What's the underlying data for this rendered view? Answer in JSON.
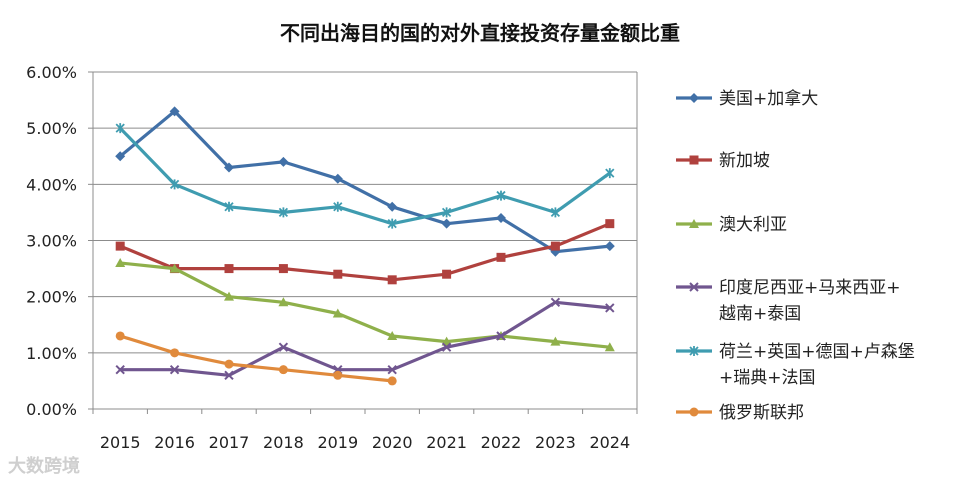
{
  "chart_data": {
    "type": "line",
    "title": "不同出海目的国的对外直接投资存量金额比重",
    "xlabel": "",
    "ylabel": "",
    "categories": [
      "2015",
      "2016",
      "2017",
      "2018",
      "2019",
      "2020",
      "2021",
      "2022",
      "2023",
      "2024"
    ],
    "yticks": [
      "0.00%",
      "1.00%",
      "2.00%",
      "3.00%",
      "4.00%",
      "5.00%",
      "6.00%"
    ],
    "ylim": [
      0,
      6
    ],
    "grid": true,
    "legend_position": "right",
    "series": [
      {
        "name": "美国+加拿大",
        "legend_lines": [
          "美国+加拿大"
        ],
        "color": "#4170a7",
        "marker": "diamond",
        "values": [
          4.5,
          5.3,
          4.3,
          4.4,
          4.1,
          3.6,
          3.3,
          3.4,
          2.8,
          2.9
        ]
      },
      {
        "name": "新加坡",
        "legend_lines": [
          "新加坡"
        ],
        "color": "#b0413e",
        "marker": "square",
        "values": [
          2.9,
          2.5,
          2.5,
          2.5,
          2.4,
          2.3,
          2.4,
          2.7,
          2.9,
          3.3
        ]
      },
      {
        "name": "澳大利亚",
        "legend_lines": [
          "澳大利亚"
        ],
        "color": "#8fb04b",
        "marker": "triangle",
        "values": [
          2.6,
          2.5,
          2.0,
          1.9,
          1.7,
          1.3,
          1.2,
          1.3,
          1.2,
          1.1
        ]
      },
      {
        "name": "印度尼西亚+马来西亚+越南+泰国",
        "legend_lines": [
          "印度尼西亚+马来西亚+",
          "越南+泰国"
        ],
        "color": "#70568f",
        "marker": "x",
        "values": [
          0.7,
          0.7,
          0.6,
          1.1,
          0.7,
          0.7,
          1.1,
          1.3,
          1.9,
          1.8
        ]
      },
      {
        "name": "荷兰+英国+德国+卢森堡+瑞典+法国",
        "legend_lines": [
          "荷兰+英国+德国+卢森堡",
          "+瑞典+法国"
        ],
        "color": "#3f9cb0",
        "marker": "star",
        "values": [
          5.0,
          4.0,
          3.6,
          3.5,
          3.6,
          3.3,
          3.5,
          3.8,
          3.5,
          4.2
        ]
      },
      {
        "name": "俄罗斯联邦",
        "legend_lines": [
          "俄罗斯联邦"
        ],
        "color": "#e08a3c",
        "marker": "circle",
        "values": [
          1.3,
          1.0,
          0.8,
          0.7,
          0.6,
          0.5,
          null,
          null,
          null,
          null
        ]
      }
    ]
  },
  "watermark": "大数跨境"
}
